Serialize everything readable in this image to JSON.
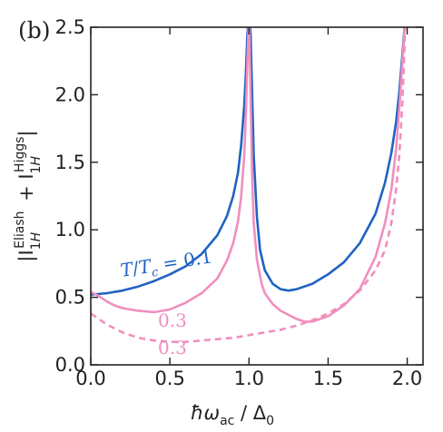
{
  "panel_label": "(b)",
  "chart_data": {
    "type": "line",
    "xlabel": "ħω_ac / Δ_0",
    "ylabel": "|I_1H^Eliash + I_1H^Higgs|",
    "xlim": [
      0.0,
      2.1
    ],
    "ylim": [
      0.0,
      2.5
    ],
    "xticks": [
      "0.0",
      "0.5",
      "1.0",
      "1.5",
      "2.0"
    ],
    "yticks": [
      "0.0",
      "0.5",
      "1.0",
      "1.5",
      "2.0",
      "2.5"
    ],
    "grid": false,
    "annotations": [
      {
        "text": "T/T_c = 0.1",
        "color": "#1f63c2"
      },
      {
        "text": "0.3",
        "color": "#f08fbe"
      },
      {
        "text": "0.3",
        "color": "#f08fbe"
      }
    ],
    "series": [
      {
        "color": "#1f63c2",
        "style": "solid",
        "x": [
          0.0,
          0.1,
          0.2,
          0.3,
          0.4,
          0.5,
          0.6,
          0.7,
          0.8,
          0.86,
          0.9,
          0.93,
          0.95,
          0.97,
          0.98,
          0.99,
          1.0,
          1.01,
          1.02,
          1.03,
          1.05,
          1.07,
          1.1,
          1.15,
          1.2,
          1.25,
          1.3,
          1.4,
          1.5,
          1.6,
          1.7,
          1.8,
          1.86,
          1.9,
          1.93,
          1.95,
          1.97,
          1.99
        ],
        "y": [
          0.52,
          0.53,
          0.55,
          0.58,
          0.62,
          0.67,
          0.73,
          0.82,
          0.96,
          1.1,
          1.25,
          1.42,
          1.62,
          1.92,
          2.15,
          2.45,
          2.6,
          2.45,
          2.0,
          1.55,
          1.1,
          0.85,
          0.7,
          0.6,
          0.56,
          0.55,
          0.56,
          0.6,
          0.67,
          0.76,
          0.9,
          1.12,
          1.35,
          1.57,
          1.8,
          2.02,
          2.3,
          2.6
        ]
      },
      {
        "color": "#f08fbe",
        "style": "solid",
        "x": [
          0.0,
          0.05,
          0.1,
          0.15,
          0.2,
          0.3,
          0.4,
          0.5,
          0.6,
          0.7,
          0.8,
          0.86,
          0.9,
          0.93,
          0.95,
          0.97,
          0.98,
          0.99,
          1.0,
          1.01,
          1.02,
          1.03,
          1.05,
          1.08,
          1.1,
          1.15,
          1.2,
          1.25,
          1.3,
          1.35,
          1.4,
          1.5,
          1.6,
          1.7,
          1.8,
          1.86,
          1.9,
          1.93,
          1.95,
          1.97,
          1.99
        ],
        "y": [
          0.54,
          0.51,
          0.47,
          0.44,
          0.42,
          0.4,
          0.39,
          0.41,
          0.46,
          0.53,
          0.64,
          0.77,
          0.9,
          1.06,
          1.24,
          1.55,
          1.85,
          2.25,
          2.6,
          2.0,
          1.4,
          1.05,
          0.78,
          0.6,
          0.53,
          0.45,
          0.4,
          0.37,
          0.34,
          0.32,
          0.32,
          0.36,
          0.44,
          0.56,
          0.8,
          1.05,
          1.3,
          1.6,
          1.9,
          2.25,
          2.6
        ]
      },
      {
        "color": "#f08fbe",
        "style": "dashed",
        "x": [
          0.0,
          0.1,
          0.2,
          0.3,
          0.4,
          0.5,
          0.6,
          0.7,
          0.8,
          0.9,
          1.0,
          1.1,
          1.2,
          1.3,
          1.4,
          1.5,
          1.6,
          1.7,
          1.8,
          1.86,
          1.9,
          1.93,
          1.95,
          1.97,
          1.98,
          1.99
        ],
        "y": [
          0.38,
          0.3,
          0.24,
          0.2,
          0.18,
          0.17,
          0.17,
          0.18,
          0.19,
          0.2,
          0.22,
          0.24,
          0.26,
          0.29,
          0.33,
          0.38,
          0.45,
          0.55,
          0.7,
          0.85,
          1.05,
          1.3,
          1.55,
          1.95,
          2.25,
          2.6
        ]
      }
    ]
  }
}
